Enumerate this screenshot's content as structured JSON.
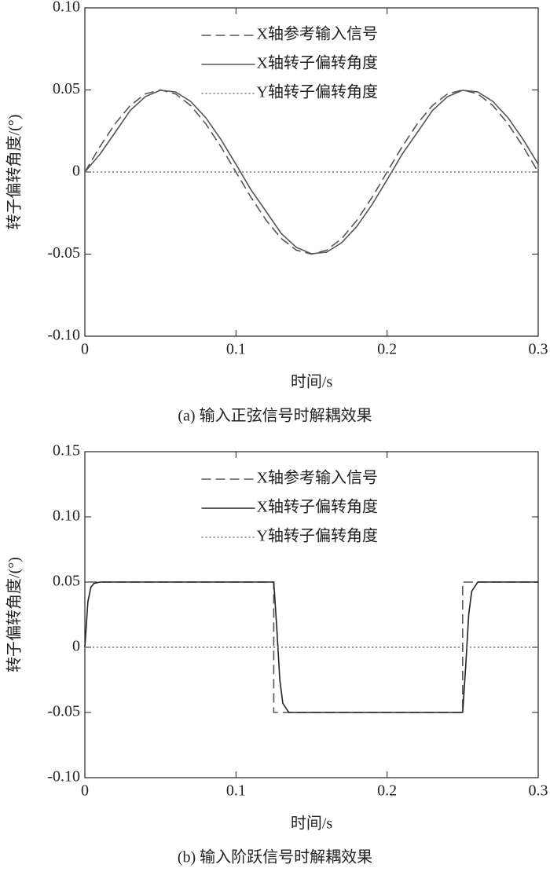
{
  "chart_data": [
    {
      "type": "line",
      "caption": "(a) 输入正弦信号时解耦效果",
      "xlabel": "时间/s",
      "ylabel": "转子偏转角度/(°)",
      "xlim": [
        0,
        0.3
      ],
      "ylim": [
        -0.1,
        0.1
      ],
      "xticks": [
        0,
        0.1,
        0.2,
        0.3
      ],
      "yticks": [
        {
          "value": -0.1,
          "label": "-0.10"
        },
        -0.05,
        0,
        0.05,
        {
          "value": 0.1,
          "label": "0.10"
        }
      ],
      "legend": "upper center",
      "series": [
        {
          "name": "X轴参考输入信号",
          "color": "#555555",
          "style": "dashed",
          "x": [
            0,
            0.01,
            0.02,
            0.03,
            0.04,
            0.05,
            0.06,
            0.07,
            0.08,
            0.09,
            0.1,
            0.11,
            0.12,
            0.13,
            0.14,
            0.15,
            0.16,
            0.17,
            0.18,
            0.19,
            0.2,
            0.21,
            0.22,
            0.23,
            0.24,
            0.25,
            0.26,
            0.27,
            0.28,
            0.29,
            0.3
          ],
          "values": [
            0,
            0.0155,
            0.0294,
            0.0405,
            0.0476,
            0.05,
            0.0476,
            0.0405,
            0.0294,
            0.0155,
            0,
            -0.0155,
            -0.0294,
            -0.0405,
            -0.0476,
            -0.05,
            -0.0476,
            -0.0405,
            -0.0294,
            -0.0155,
            0,
            0.0155,
            0.0294,
            0.0405,
            0.0476,
            0.05,
            0.0476,
            0.0405,
            0.0294,
            0.0155,
            0
          ]
        },
        {
          "name": "X轴转子偏转角度",
          "color": "#555555",
          "style": "solid",
          "x": [
            0,
            0.01,
            0.02,
            0.03,
            0.04,
            0.05,
            0.06,
            0.07,
            0.08,
            0.09,
            0.1,
            0.11,
            0.12,
            0.13,
            0.14,
            0.15,
            0.16,
            0.17,
            0.18,
            0.19,
            0.2,
            0.21,
            0.22,
            0.23,
            0.24,
            0.25,
            0.26,
            0.27,
            0.28,
            0.29,
            0.3
          ],
          "values": [
            0,
            0.0109,
            0.0241,
            0.0375,
            0.0459,
            0.0498,
            0.0488,
            0.043,
            0.0331,
            0.0199,
            0.0047,
            -0.0109,
            -0.0241,
            -0.0375,
            -0.0459,
            -0.0498,
            -0.0488,
            -0.043,
            -0.0331,
            -0.0199,
            -0.0047,
            0.0109,
            0.0241,
            0.0375,
            0.0459,
            0.0498,
            0.0488,
            0.043,
            0.0331,
            0.0199,
            0.0047
          ]
        },
        {
          "name": "Y轴转子偏转角度",
          "color": "#777777",
          "style": "dotted",
          "x": [
            0,
            0.3
          ],
          "values": [
            0,
            0
          ]
        }
      ]
    },
    {
      "type": "line",
      "caption": "(b) 输入阶跃信号时解耦效果",
      "xlabel": "时间/s",
      "ylabel": "转子偏转角度/(°)",
      "xlim": [
        0,
        0.3
      ],
      "ylim": [
        -0.1,
        0.15
      ],
      "xticks": [
        0,
        0.1,
        0.2,
        0.3
      ],
      "yticks": [
        {
          "value": -0.1,
          "label": "-0.10"
        },
        -0.05,
        0,
        0.05,
        {
          "value": 0.1,
          "label": "0.10"
        },
        0.15
      ],
      "legend": "upper center",
      "series": [
        {
          "name": "X轴参考输入信号",
          "color": "#555555",
          "style": "dashed",
          "x": [
            0.002,
            0.125,
            0.125,
            0.25,
            0.25,
            0.3
          ],
          "values": [
            0.05,
            0.05,
            -0.05,
            -0.05,
            0.05,
            0.05
          ]
        },
        {
          "name": "X轴转子偏转角度",
          "color": "#222222",
          "style": "solid",
          "x": [
            0,
            0.002,
            0.004,
            0.006,
            0.01,
            0.125,
            0.127,
            0.129,
            0.131,
            0.135,
            0.25,
            0.252,
            0.254,
            0.256,
            0.26,
            0.3
          ],
          "values": [
            0,
            0.035,
            0.046,
            0.049,
            0.05,
            0.05,
            0.015,
            -0.025,
            -0.043,
            -0.05,
            -0.05,
            -0.015,
            0.025,
            0.043,
            0.05,
            0.05
          ]
        },
        {
          "name": "Y轴转子偏转角度",
          "color": "#777777",
          "style": "dotted",
          "x": [
            0,
            0.3
          ],
          "values": [
            0,
            0
          ]
        }
      ]
    }
  ]
}
